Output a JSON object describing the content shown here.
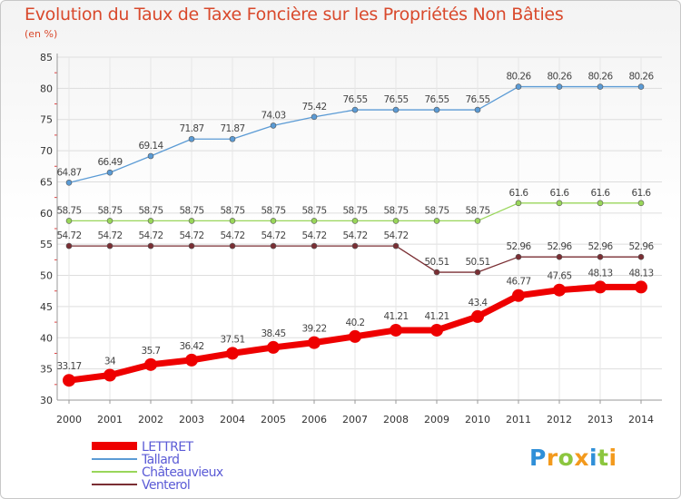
{
  "chart_data": {
    "type": "line",
    "title": "Evolution du Taux de Taxe Foncière sur les Propriétés Non Bâties",
    "ylabel": "(en %)",
    "xlabel": "",
    "ylim": [
      30,
      85
    ],
    "yticks": [
      30,
      35,
      40,
      45,
      50,
      55,
      60,
      65,
      70,
      75,
      80,
      85
    ],
    "grid": true,
    "categories": [
      "2000",
      "2001",
      "2002",
      "2003",
      "2004",
      "2005",
      "2006",
      "2007",
      "2008",
      "2009",
      "2010",
      "2011",
      "2012",
      "2013",
      "2014"
    ],
    "series": [
      {
        "name": "LETTRET",
        "color": "#ee0000",
        "values": [
          33.17,
          34,
          35.7,
          36.42,
          37.51,
          38.45,
          39.22,
          40.2,
          41.21,
          41.21,
          43.4,
          46.77,
          47.65,
          48.13,
          48.13
        ],
        "labels": [
          "33.17",
          "34",
          "35.7",
          "36.42",
          "37.51",
          "38.45",
          "39.22",
          "40.2",
          "41.21",
          "41.21",
          "43.4",
          "46.77",
          "47.65",
          "48.13",
          "48.13"
        ]
      },
      {
        "name": "Tallard",
        "color": "#5b9bd5",
        "values": [
          64.87,
          66.49,
          69.14,
          71.87,
          71.87,
          74.03,
          75.42,
          76.55,
          76.55,
          76.55,
          76.55,
          80.26,
          80.26,
          80.26,
          80.26
        ],
        "labels": [
          "64.87",
          "66.49",
          "69.14",
          "71.87",
          "71.87",
          "74.03",
          "75.42",
          "76.55",
          "76.55",
          "76.55",
          "76.55",
          "80.26",
          "80.26",
          "80.26",
          "80.26"
        ]
      },
      {
        "name": "Châteauvieux",
        "color": "#99d65a",
        "values": [
          58.75,
          58.75,
          58.75,
          58.75,
          58.75,
          58.75,
          58.75,
          58.75,
          58.75,
          58.75,
          58.75,
          61.6,
          61.6,
          61.6,
          61.6
        ],
        "labels": [
          "58.75",
          "58.75",
          "58.75",
          "58.75",
          "58.75",
          "58.75",
          "58.75",
          "58.75",
          "58.75",
          "58.75",
          "58.75",
          "61.6",
          "61.6",
          "61.6",
          "61.6"
        ]
      },
      {
        "name": "Venterol",
        "color": "#7a2e33",
        "values": [
          54.72,
          54.72,
          54.72,
          54.72,
          54.72,
          54.72,
          54.72,
          54.72,
          54.72,
          50.51,
          50.51,
          52.96,
          52.96,
          52.96,
          52.96
        ],
        "labels": [
          "54.72",
          "54.72",
          "54.72",
          "54.72",
          "54.72",
          "54.72",
          "54.72",
          "54.72",
          "54.72",
          "50.51",
          "50.51",
          "52.96",
          "52.96",
          "52.96",
          "52.96"
        ]
      }
    ]
  },
  "logo": {
    "text_parts": [
      "P",
      "r",
      "o",
      "x",
      "i",
      "t",
      "i"
    ]
  }
}
